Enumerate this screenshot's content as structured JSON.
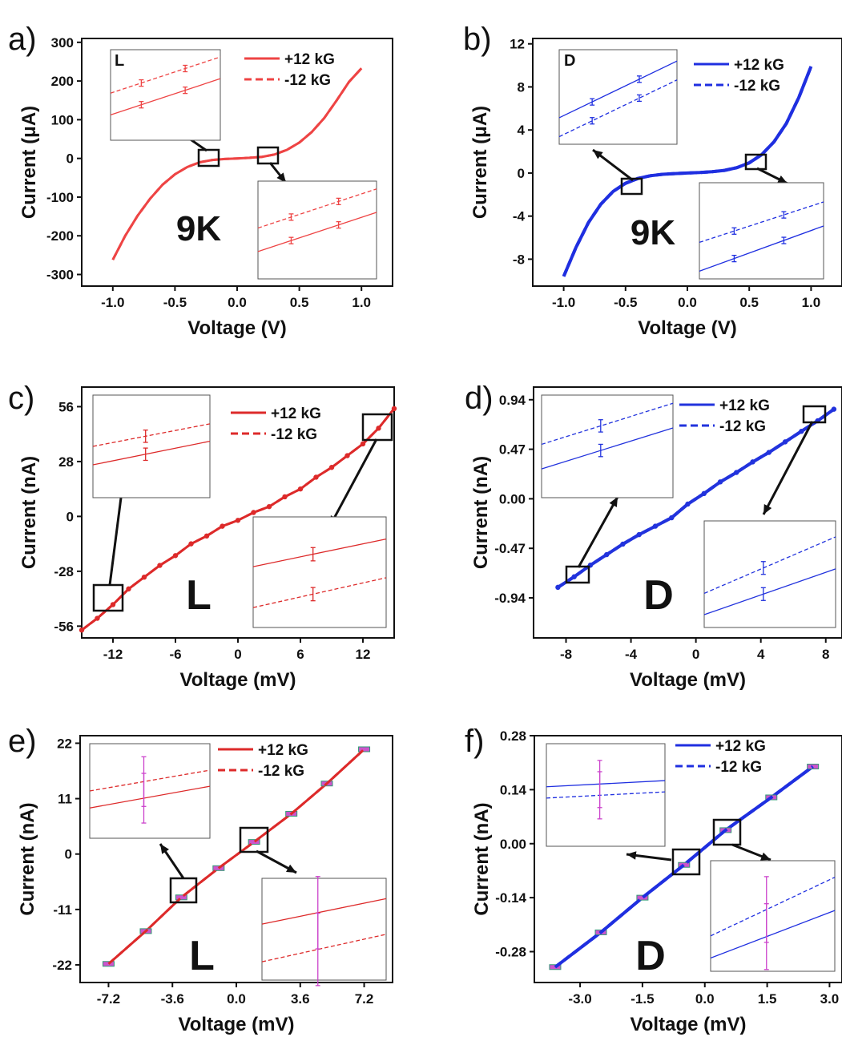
{
  "figure": {
    "panels": [
      {
        "letter": "a)",
        "inset_letter": "L",
        "big_label": "9K",
        "color": "#ee4444"
      },
      {
        "letter": "b)",
        "inset_letter": "D",
        "big_label": "9K",
        "color": "#1f2fe0"
      },
      {
        "letter": "c)",
        "inset_letter": "",
        "big_label": "L",
        "color": "#dd2a2a"
      },
      {
        "letter": "d)",
        "inset_letter": "",
        "big_label": "D",
        "color": "#2233dd"
      },
      {
        "letter": "e)",
        "inset_letter": "",
        "big_label": "L",
        "color": "#dd2a2a"
      },
      {
        "letter": "f)",
        "inset_letter": "",
        "big_label": "D",
        "color": "#1f2fe0"
      }
    ]
  },
  "chart_data": [
    {
      "type": "line",
      "panel": "a",
      "xlabel": "Voltage (V)",
      "ylabel": "Current (μA)",
      "xlim": [
        -1.25,
        1.25
      ],
      "ylim": [
        -330,
        310
      ],
      "xticks": [
        -1.0,
        -0.5,
        0.0,
        0.5,
        1.0
      ],
      "xtick_labels": [
        "-1.0",
        "-0.5",
        "0.0",
        "0.5",
        "1.0"
      ],
      "yticks": [
        300,
        200,
        100,
        0,
        -100,
        -200,
        -300
      ],
      "ytick_labels": [
        "300",
        "200",
        "100",
        "0",
        "-100",
        "-200",
        "-300"
      ],
      "legend": [
        "+12 kG",
        "-12 kG"
      ],
      "series": [
        {
          "name": "+12 kG",
          "style": "solid",
          "x": [
            -1.0,
            -0.9,
            -0.8,
            -0.7,
            -0.6,
            -0.5,
            -0.4,
            -0.3,
            -0.2,
            -0.1,
            0.0,
            0.1,
            0.2,
            0.3,
            0.4,
            0.5,
            0.6,
            0.7,
            0.8,
            0.9,
            1.0
          ],
          "y": [
            -262,
            -200,
            -148,
            -104,
            -68,
            -41,
            -22,
            -10,
            -4,
            -1.5,
            0,
            1.5,
            4,
            10,
            22,
            41,
            68,
            104,
            150,
            198,
            233
          ]
        },
        {
          "name": "-12 kG",
          "style": "dashed",
          "x": [
            -1.0,
            -0.9,
            -0.8,
            -0.7,
            -0.6,
            -0.5,
            -0.4,
            -0.3,
            -0.2,
            -0.1,
            0.0,
            0.1,
            0.2,
            0.3,
            0.4,
            0.5,
            0.6,
            0.7,
            0.8,
            0.9,
            1.0
          ],
          "y": [
            -262,
            -200,
            -148,
            -104,
            -68,
            -41,
            -22,
            -10,
            -4,
            -1.5,
            0,
            1.5,
            4,
            10,
            22,
            41,
            68,
            104,
            150,
            198,
            233
          ]
        }
      ]
    },
    {
      "type": "line",
      "panel": "b",
      "xlabel": "Voltage (V)",
      "ylabel": "Current (μA)",
      "xlim": [
        -1.25,
        1.25
      ],
      "ylim": [
        -10.5,
        12.5
      ],
      "xticks": [
        -1.0,
        -0.5,
        0.0,
        0.5,
        1.0
      ],
      "xtick_labels": [
        "-1.0",
        "-0.5",
        "0.0",
        "0.5",
        "1.0"
      ],
      "yticks": [
        12,
        8,
        4,
        0,
        -4,
        -8
      ],
      "ytick_labels": [
        "12",
        "8",
        "4",
        "0",
        "-4",
        "-8"
      ],
      "legend": [
        "+12 kG",
        "-12 kG"
      ],
      "series": [
        {
          "name": "+12 kG",
          "style": "solid",
          "x": [
            -1.0,
            -0.9,
            -0.8,
            -0.7,
            -0.6,
            -0.5,
            -0.4,
            -0.3,
            -0.2,
            -0.1,
            0.0,
            0.1,
            0.2,
            0.3,
            0.4,
            0.5,
            0.6,
            0.7,
            0.8,
            0.9,
            1.0
          ],
          "y": [
            -9.6,
            -6.9,
            -4.6,
            -2.9,
            -1.7,
            -0.95,
            -0.5,
            -0.25,
            -0.12,
            -0.05,
            0,
            0.05,
            0.12,
            0.25,
            0.5,
            0.95,
            1.7,
            2.9,
            4.6,
            7.0,
            9.9
          ]
        },
        {
          "name": "-12 kG",
          "style": "dashed",
          "x": [
            -1.0,
            -0.9,
            -0.8,
            -0.7,
            -0.6,
            -0.5,
            -0.4,
            -0.3,
            -0.2,
            -0.1,
            0.0,
            0.1,
            0.2,
            0.3,
            0.4,
            0.5,
            0.6,
            0.7,
            0.8,
            0.9,
            1.0
          ],
          "y": [
            -9.6,
            -6.9,
            -4.6,
            -2.9,
            -1.7,
            -0.95,
            -0.5,
            -0.25,
            -0.12,
            -0.05,
            0,
            0.05,
            0.12,
            0.25,
            0.5,
            0.95,
            1.7,
            2.9,
            4.6,
            7.0,
            9.9
          ]
        }
      ]
    },
    {
      "type": "line",
      "panel": "c",
      "xlabel": "Voltage (mV)",
      "ylabel": "Current (nA)",
      "xlim": [
        -15,
        15
      ],
      "ylim": [
        -62,
        66
      ],
      "xticks": [
        -12,
        -6,
        0,
        6,
        12
      ],
      "xtick_labels": [
        "-12",
        "-6",
        "0",
        "6",
        "12"
      ],
      "yticks": [
        56,
        28,
        0,
        -28,
        -56
      ],
      "ytick_labels": [
        "56",
        "28",
        "0",
        "-28",
        "-56"
      ],
      "legend": [
        "+12 kG",
        "-12 kG"
      ],
      "series": [
        {
          "name": "+12 kG",
          "style": "solid",
          "markers": true,
          "x": [
            -15,
            -13.5,
            -12,
            -10.5,
            -9,
            -7.5,
            -6,
            -4.5,
            -3,
            -1.5,
            0,
            1.5,
            3,
            4.5,
            6,
            7.5,
            9,
            10.5,
            12,
            13.5,
            15
          ],
          "y": [
            -58,
            -52,
            -45,
            -37,
            -31,
            -25,
            -20,
            -14,
            -10,
            -5,
            -2,
            2,
            5,
            10,
            14,
            20,
            25,
            31,
            37,
            45,
            55
          ]
        },
        {
          "name": "-12 kG",
          "style": "dashed",
          "markers": true,
          "x": [
            -15,
            -13.5,
            -12,
            -10.5,
            -9,
            -7.5,
            -6,
            -4.5,
            -3,
            -1.5,
            0,
            1.5,
            3,
            4.5,
            6,
            7.5,
            9,
            10.5,
            12,
            13.5,
            15
          ],
          "y": [
            -58,
            -52,
            -45,
            -37,
            -31,
            -25,
            -20,
            -14,
            -10,
            -5,
            -2,
            2,
            5,
            10,
            14,
            20,
            25,
            31,
            37,
            45,
            55
          ]
        }
      ]
    },
    {
      "type": "line",
      "panel": "d",
      "xlabel": "Voltage (mV)",
      "ylabel": "Current (nA)",
      "xlim": [
        -10,
        9
      ],
      "ylim": [
        -1.32,
        1.06
      ],
      "xticks": [
        -8,
        -4,
        0,
        4,
        8
      ],
      "xtick_labels": [
        "-8",
        "-4",
        "0",
        "4",
        "8"
      ],
      "yticks": [
        0.94,
        0.47,
        0.0,
        -0.47,
        -0.94
      ],
      "ytick_labels": [
        "0.94",
        "0.47",
        "0.00",
        "-0.47",
        "-0.94"
      ],
      "legend": [
        "+12 kG",
        "-12 kG"
      ],
      "series": [
        {
          "name": "+12 kG",
          "style": "solid",
          "markers": true,
          "x": [
            -8.5,
            -7.5,
            -6.5,
            -5.5,
            -4.5,
            -3.5,
            -2.5,
            -1.5,
            -0.5,
            0.5,
            1.5,
            2.5,
            3.5,
            4.5,
            5.5,
            6.5,
            7.5,
            8.5
          ],
          "y": [
            -0.84,
            -0.74,
            -0.63,
            -0.53,
            -0.43,
            -0.34,
            -0.26,
            -0.18,
            -0.05,
            0.05,
            0.16,
            0.25,
            0.35,
            0.44,
            0.54,
            0.64,
            0.74,
            0.85
          ]
        },
        {
          "name": "-12 kG",
          "style": "dashed",
          "markers": true,
          "x": [
            -8.5,
            -7.5,
            -6.5,
            -5.5,
            -4.5,
            -3.5,
            -2.5,
            -1.5,
            -0.5,
            0.5,
            1.5,
            2.5,
            3.5,
            4.5,
            5.5,
            6.5,
            7.5,
            8.5
          ],
          "y": [
            -0.84,
            -0.74,
            -0.63,
            -0.53,
            -0.43,
            -0.34,
            -0.26,
            -0.18,
            -0.05,
            0.05,
            0.16,
            0.25,
            0.35,
            0.44,
            0.54,
            0.64,
            0.74,
            0.85
          ]
        }
      ]
    },
    {
      "type": "line",
      "panel": "e",
      "xlabel": "Voltage (mV)",
      "ylabel": "Current (nA)",
      "xlim": [
        -8.8,
        8.8
      ],
      "ylim": [
        -25.5,
        23.5
      ],
      "xticks": [
        -7.2,
        -3.6,
        0.0,
        3.6,
        7.2
      ],
      "xtick_labels": [
        "-7.2",
        "-3.6",
        "0.0",
        "3.6",
        "7.2"
      ],
      "yticks": [
        22,
        11,
        0,
        -11,
        -22
      ],
      "ytick_labels": [
        "22",
        "11",
        "0",
        "-11",
        "-22"
      ],
      "legend": [
        "+12 kG",
        "-12 kG"
      ],
      "series": [
        {
          "name": "+12 kG",
          "style": "solid",
          "markers": true,
          "x": [
            -7.2,
            -5.1,
            -3.1,
            -1.0,
            1.0,
            3.1,
            5.1,
            7.2
          ],
          "y": [
            -21.8,
            -15.3,
            -8.6,
            -2.8,
            2.4,
            8.0,
            14.0,
            20.8
          ]
        },
        {
          "name": "-12 kG",
          "style": "dashed",
          "markers": true,
          "x": [
            -7.2,
            -5.1,
            -3.1,
            -1.0,
            1.0,
            3.1,
            5.1,
            7.2
          ],
          "y": [
            -21.8,
            -15.3,
            -8.6,
            -2.8,
            2.4,
            8.0,
            14.0,
            20.8
          ]
        }
      ]
    },
    {
      "type": "line",
      "panel": "f",
      "xlabel": "Voltage (mV)",
      "ylabel": "Current (nA)",
      "xlim": [
        -4.1,
        3.3
      ],
      "ylim": [
        -0.36,
        0.28
      ],
      "xticks": [
        -3.0,
        -1.5,
        0.0,
        1.5,
        3.0
      ],
      "xtick_labels": [
        "-3.0",
        "-1.5",
        "0.0",
        "1.5",
        "3.0"
      ],
      "yticks": [
        0.28,
        0.14,
        0.0,
        -0.14,
        -0.28
      ],
      "ytick_labels": [
        "0.28",
        "0.14",
        "0.00",
        "-0.14",
        "-0.28"
      ],
      "legend": [
        "+12 kG",
        "-12 kG"
      ],
      "series": [
        {
          "name": "+12 kG",
          "style": "solid",
          "markers": true,
          "x": [
            -3.6,
            -2.5,
            -1.5,
            -0.5,
            0.5,
            1.6,
            2.6
          ],
          "y": [
            -0.32,
            -0.23,
            -0.14,
            -0.055,
            0.035,
            0.12,
            0.2
          ]
        },
        {
          "name": "-12 kG",
          "style": "dashed",
          "markers": true,
          "x": [
            -3.6,
            -2.5,
            -1.5,
            -0.5,
            0.5,
            1.6,
            2.6
          ],
          "y": [
            -0.32,
            -0.23,
            -0.14,
            -0.055,
            0.035,
            0.12,
            0.2
          ]
        }
      ]
    }
  ]
}
